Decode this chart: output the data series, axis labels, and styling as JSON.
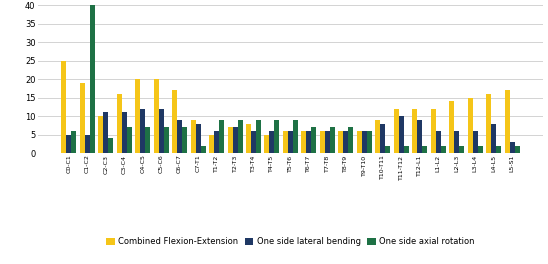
{
  "categories": [
    "C0-C1",
    "C1-C2",
    "C2-C3",
    "C3-C4",
    "C4-C5",
    "C5-C6",
    "C6-C7",
    "C7-T1",
    "T1-T2",
    "T2-T3",
    "T3-T4",
    "T4-T5",
    "T5-T6",
    "T6-T7",
    "T7-T8",
    "T8-T9",
    "T9-T10",
    "T10-T11",
    "T11-T12",
    "T12-L1",
    "L1-L2",
    "L2-L3",
    "L3-L4",
    "L4-L5",
    "L5-S1"
  ],
  "flexion_extension": [
    25,
    19,
    10,
    16,
    20,
    20,
    17,
    9,
    5,
    7,
    8,
    5,
    6,
    6,
    6,
    6,
    6,
    9,
    12,
    12,
    12,
    14,
    15,
    16,
    17
  ],
  "lateral_bending": [
    5,
    5,
    11,
    11,
    12,
    12,
    9,
    8,
    6,
    7,
    6,
    6,
    6,
    6,
    6,
    6,
    6,
    8,
    10,
    9,
    6,
    6,
    6,
    8,
    3
  ],
  "axial_rotation": [
    6,
    40,
    4,
    7,
    7,
    7,
    7,
    2,
    9,
    9,
    9,
    9,
    9,
    7,
    7,
    7,
    6,
    2,
    2,
    2,
    2,
    2,
    2,
    2,
    2
  ],
  "color_flexion": "#F5C518",
  "color_lateral": "#1F3864",
  "color_axial": "#1E7145",
  "ylim": [
    0,
    40
  ],
  "yticks": [
    0,
    5,
    10,
    15,
    20,
    25,
    30,
    35,
    40
  ],
  "legend_labels": [
    "Combined Flexion-Extension",
    "One side lateral bending",
    "One side axial rotation"
  ],
  "grid_color": "#d3d3d3",
  "background_color": "#ffffff"
}
